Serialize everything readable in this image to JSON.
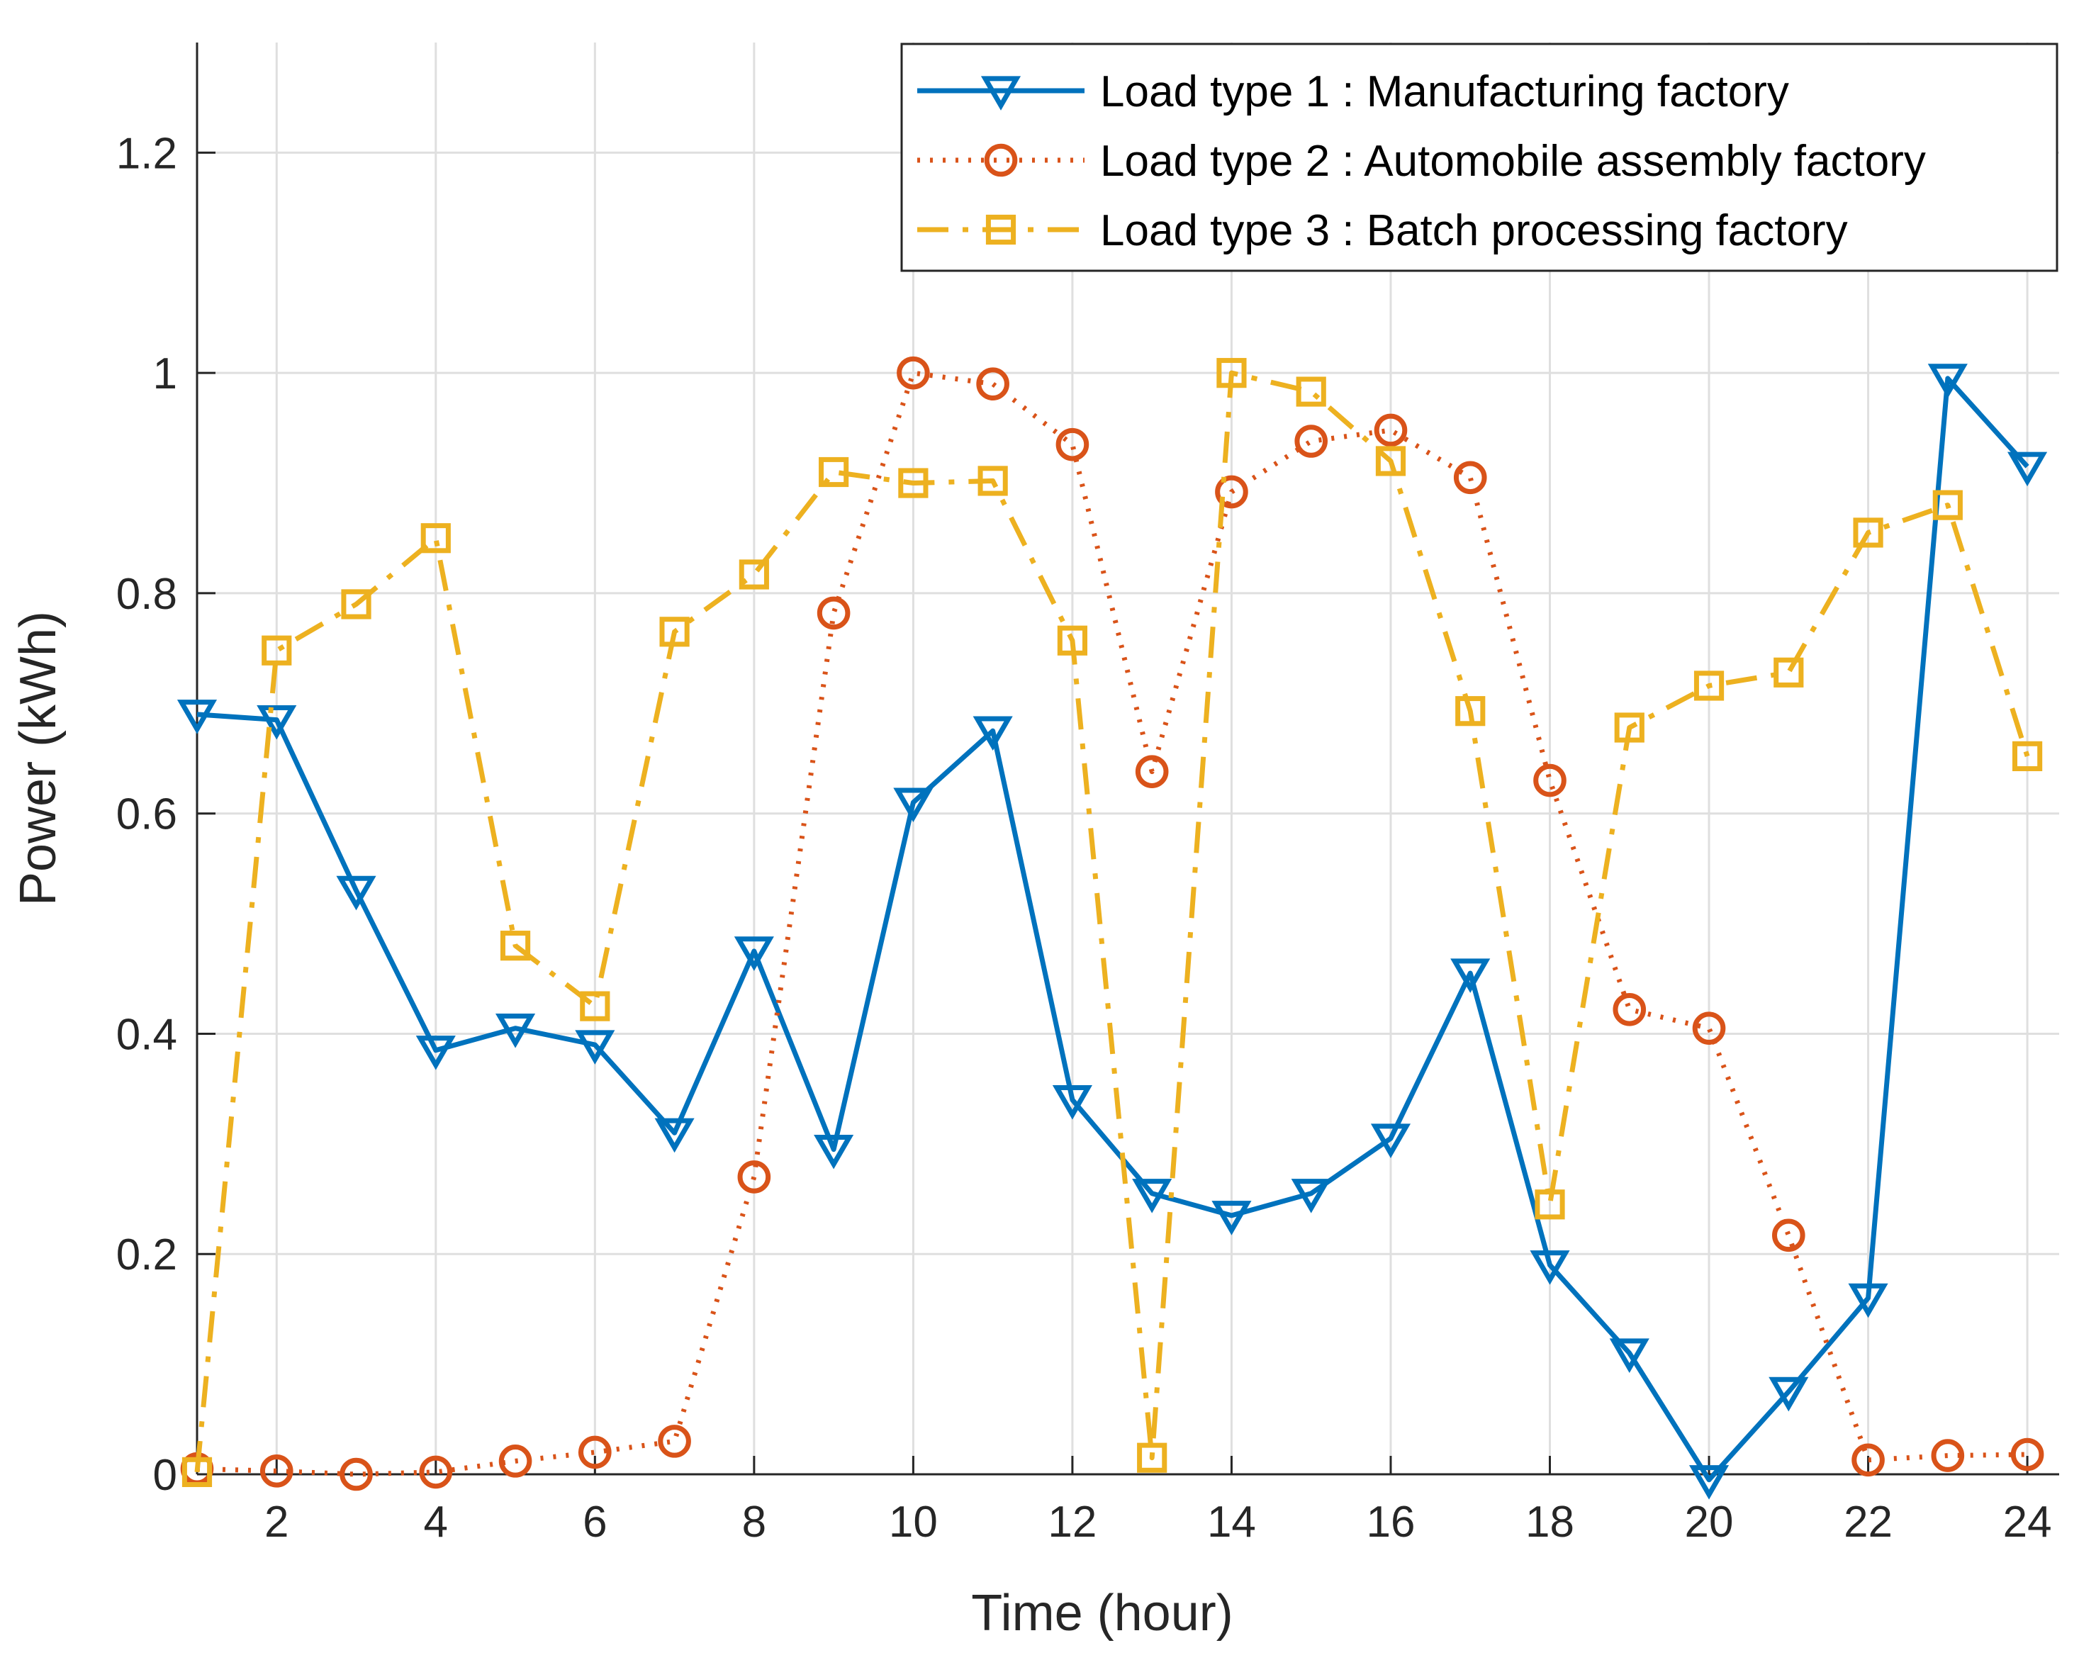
{
  "chart_data": {
    "type": "line",
    "title": "",
    "xlabel": "Time (hour)",
    "ylabel": "Power (kWh)",
    "xlim": [
      1,
      24.4
    ],
    "ylim": [
      0,
      1.3
    ],
    "grid": true,
    "legend_position": "top-right",
    "xticks": [
      2,
      4,
      6,
      8,
      10,
      12,
      14,
      16,
      18,
      20,
      22,
      24
    ],
    "xtick_labels": [
      "2",
      "4",
      "6",
      "8",
      "10",
      "12",
      "14",
      "16",
      "18",
      "20",
      "22",
      "24"
    ],
    "yticks": [
      0,
      0.2,
      0.4,
      0.6,
      0.8,
      1.0,
      1.2
    ],
    "ytick_labels": [
      "0",
      "0.2",
      "0.4",
      "0.6",
      "0.8",
      "1",
      "1.2"
    ],
    "x": [
      1,
      2,
      3,
      4,
      5,
      6,
      7,
      8,
      9,
      10,
      11,
      12,
      13,
      14,
      15,
      16,
      17,
      18,
      19,
      20,
      21,
      22,
      23,
      24
    ],
    "series": [
      {
        "name": "Load type 1 : Manufacturing factory",
        "color": "#0072BD",
        "line_style": "solid",
        "marker": "triangle-down",
        "values": [
          0.69,
          0.685,
          0.53,
          0.385,
          0.405,
          0.39,
          0.31,
          0.475,
          0.295,
          0.61,
          0.675,
          0.34,
          0.255,
          0.235,
          0.255,
          0.305,
          0.455,
          0.19,
          0.11,
          -0.005,
          0.075,
          0.16,
          0.995,
          0.915
        ]
      },
      {
        "name": "Load type 2 : Automobile assembly factory",
        "color": "#D95319",
        "line_style": "dotted",
        "marker": "circle",
        "values": [
          0.005,
          0.003,
          0.0,
          0.002,
          0.012,
          0.02,
          0.03,
          0.27,
          0.782,
          1.0,
          0.99,
          0.935,
          0.638,
          0.892,
          0.938,
          0.948,
          0.905,
          0.63,
          0.422,
          0.405,
          0.217,
          0.013,
          0.017,
          0.018
        ]
      },
      {
        "name": "Load type 3 : Batch processing factory",
        "color": "#EDB120",
        "line_style": "dash-dot",
        "marker": "square",
        "values": [
          0.002,
          0.748,
          0.79,
          0.85,
          0.48,
          0.425,
          0.765,
          0.817,
          0.91,
          0.9,
          0.902,
          0.757,
          0.015,
          1.0,
          0.983,
          0.92,
          0.693,
          0.245,
          0.678,
          0.716,
          0.728,
          0.855,
          0.88,
          0.652
        ]
      }
    ]
  }
}
